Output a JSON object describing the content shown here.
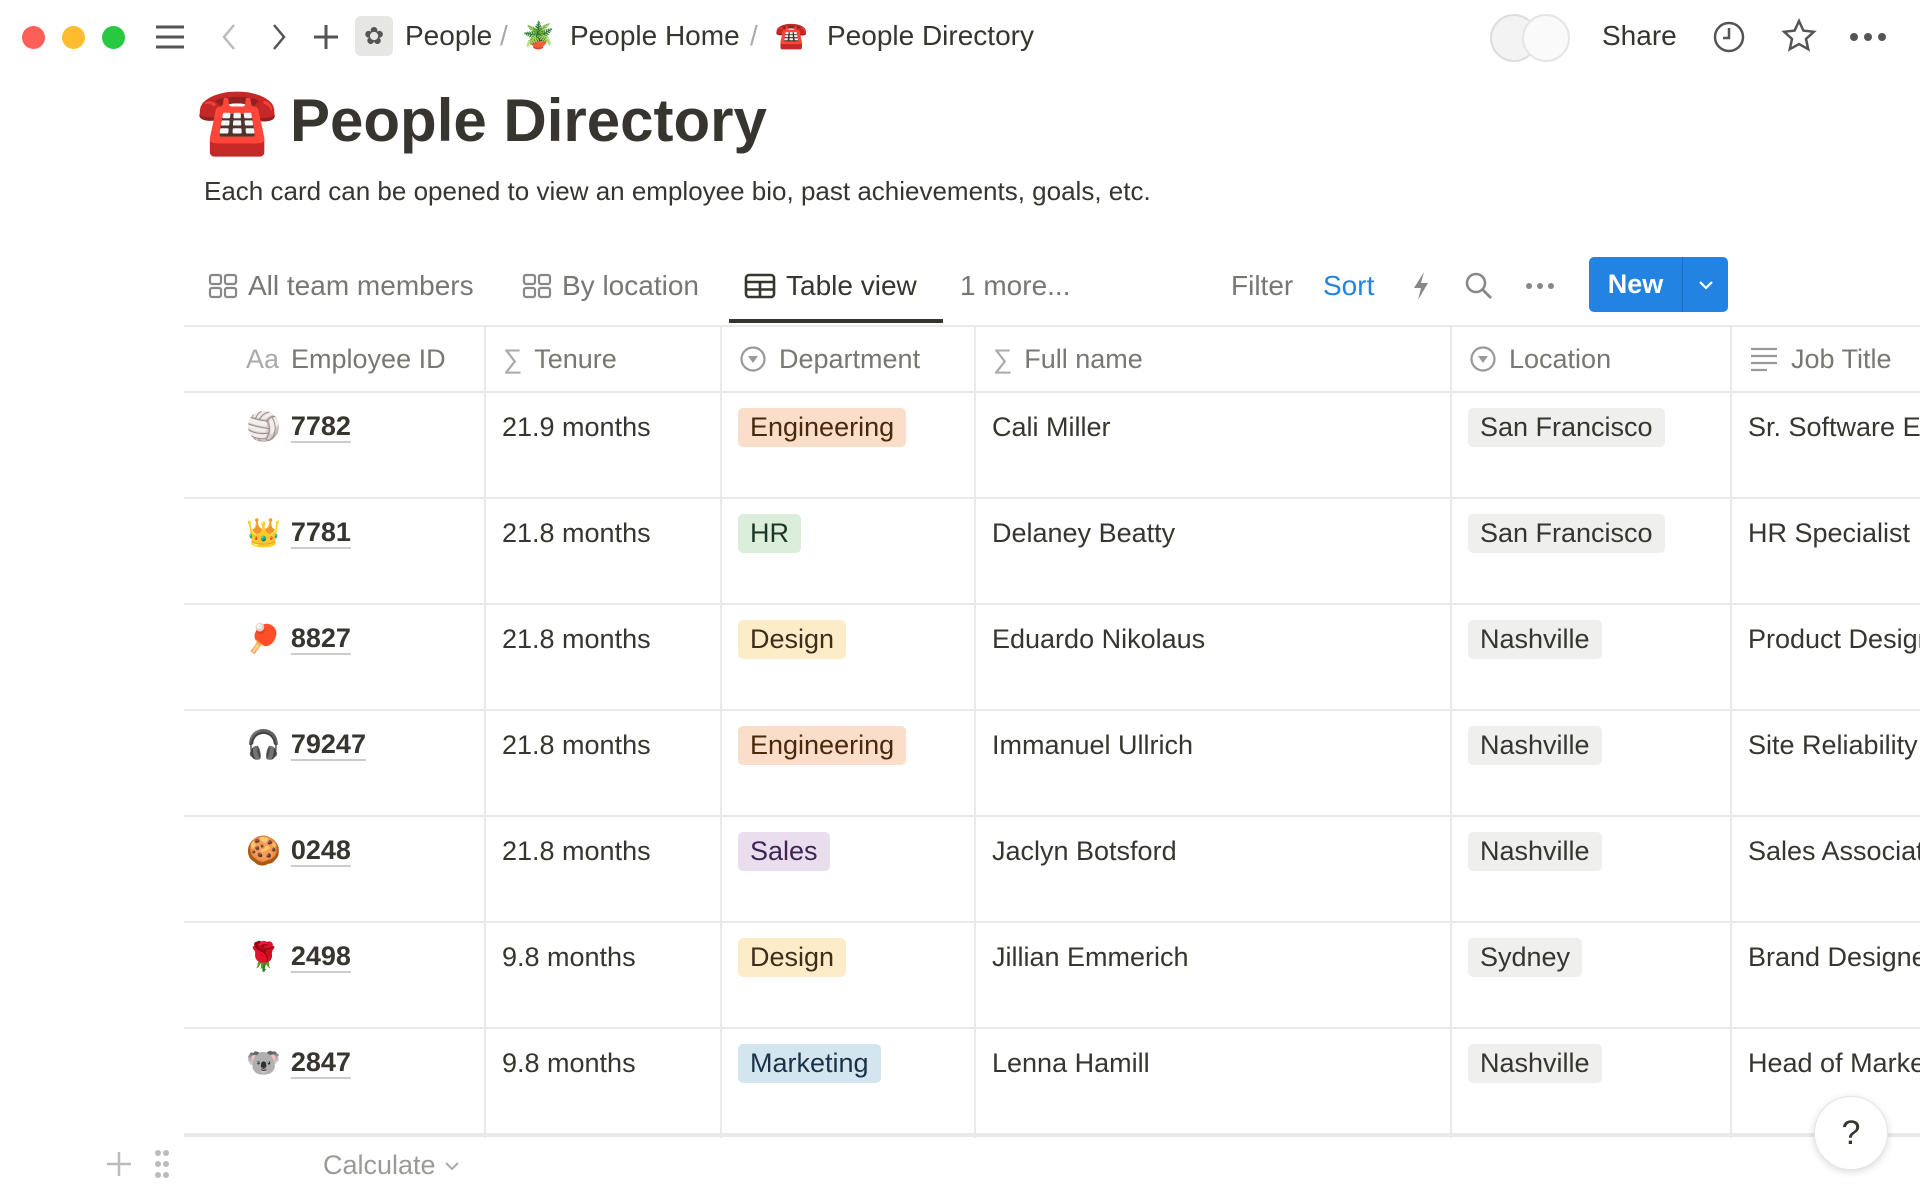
{
  "topbar": {
    "breadcrumbs": [
      {
        "icon": "flower-icon",
        "label": "People"
      },
      {
        "icon": "potted-plant-icon",
        "label": "People Home"
      },
      {
        "icon": "telephone-icon",
        "label": "People Directory"
      }
    ],
    "separator": "/",
    "share_label": "Share"
  },
  "page": {
    "emoji": "☎️",
    "title": "People Directory",
    "description": "Each card can be opened to view an employee bio, past achievements, goals, etc."
  },
  "views": {
    "tabs": [
      "All team members",
      "By location",
      "Table view"
    ],
    "active": 2,
    "more": "1 more...",
    "filter": "Filter",
    "sort": "Sort",
    "new_label": "New"
  },
  "colors": {
    "accent": "#2383e2",
    "sort": "#2383e2"
  },
  "table": {
    "columns": [
      {
        "icon": "Aa",
        "label": "Employee ID"
      },
      {
        "icon": "∑",
        "label": "Tenure"
      },
      {
        "icon": "select",
        "label": "Department"
      },
      {
        "icon": "∑",
        "label": "Full name"
      },
      {
        "icon": "select",
        "label": "Location"
      },
      {
        "icon": "text",
        "label": "Job Title"
      }
    ],
    "rows": [
      {
        "emoji": "🏐",
        "id": "7782",
        "tenure": "21.9 months",
        "dept": "Engineering",
        "name": "Cali Miller",
        "location": "San Francisco",
        "title": "Sr. Software Engineer"
      },
      {
        "emoji": "👑",
        "id": "7781",
        "tenure": "21.8 months",
        "dept": "HR",
        "name": "Delaney Beatty",
        "location": "San Francisco",
        "title": "HR Specialist"
      },
      {
        "emoji": "🏓",
        "id": "8827",
        "tenure": "21.8 months",
        "dept": "Design",
        "name": "Eduardo Nikolaus",
        "location": "Nashville",
        "title": "Product Designer"
      },
      {
        "emoji": "🎧",
        "id": "79247",
        "tenure": "21.8 months",
        "dept": "Engineering",
        "name": "Immanuel Ullrich",
        "location": "Nashville",
        "title": "Site Reliability Engineer"
      },
      {
        "emoji": "🍪",
        "id": "0248",
        "tenure": "21.8 months",
        "dept": "Sales",
        "name": "Jaclyn Botsford",
        "location": "Nashville",
        "title": "Sales Associate"
      },
      {
        "emoji": "🌹",
        "id": "2498",
        "tenure": "9.8 months",
        "dept": "Design",
        "name": "Jillian Emmerich",
        "location": "Sydney",
        "title": "Brand Designer"
      },
      {
        "emoji": "🐨",
        "id": "2847",
        "tenure": "9.8 months",
        "dept": "Marketing",
        "name": "Lenna Hamill",
        "location": "Nashville",
        "title": "Head of Marketing"
      }
    ],
    "dept_colors": {
      "Engineering": [
        "#fadec9",
        "#49290e"
      ],
      "HR": [
        "#dbeddb",
        "#1c3829"
      ],
      "Design": [
        "#fdecc8",
        "#402c1b"
      ],
      "Sales": [
        "#e8deee",
        "#412454"
      ],
      "Marketing": [
        "#d3e5ef",
        "#183347"
      ]
    },
    "location_color": "#efefed",
    "calculate": "Calculate"
  },
  "help": "?"
}
